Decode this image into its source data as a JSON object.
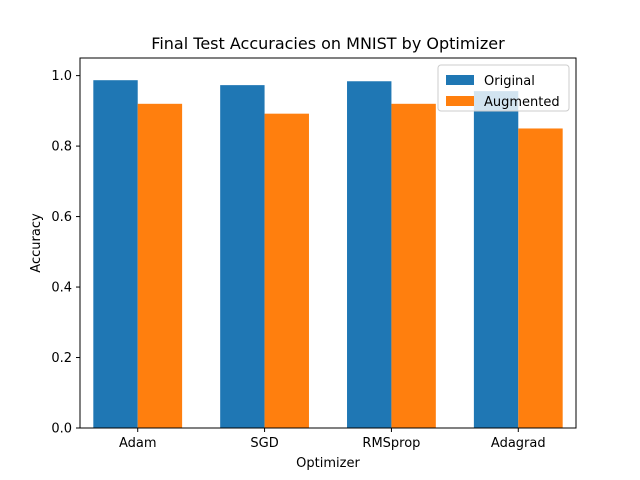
{
  "chart_data": {
    "type": "bar",
    "title": "Final Test Accuracies on MNIST by Optimizer",
    "xlabel": "Optimizer",
    "ylabel": "Accuracy",
    "categories": [
      "Adam",
      "SGD",
      "RMSprop",
      "Adagrad"
    ],
    "series": [
      {
        "name": "Original",
        "color": "#1f77b4",
        "values": [
          0.987,
          0.973,
          0.984,
          0.956
        ]
      },
      {
        "name": "Augmented",
        "color": "#ff7f0e",
        "values": [
          0.92,
          0.892,
          0.92,
          0.85
        ]
      }
    ],
    "ylim": [
      0,
      1.05
    ],
    "yticks": [
      0.0,
      0.2,
      0.4,
      0.6,
      0.8,
      1.0
    ],
    "ytick_labels": [
      "0.0",
      "0.2",
      "0.4",
      "0.6",
      "0.8",
      "1.0"
    ],
    "grid": false,
    "legend_position": "top-right"
  }
}
